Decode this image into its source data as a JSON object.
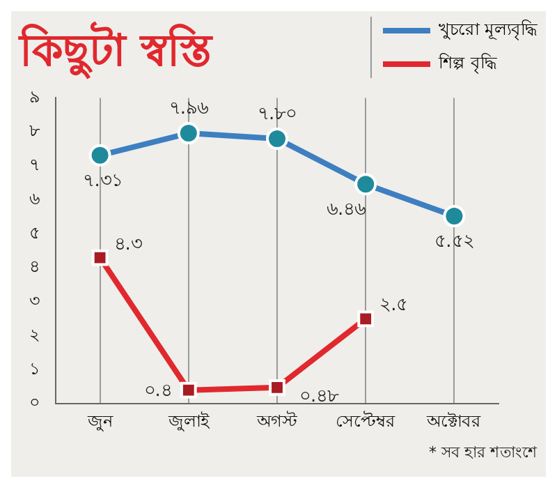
{
  "chart_data": {
    "type": "line",
    "title": "কিছুটা স্বস্তি",
    "categories": [
      "জুন",
      "জুলাই",
      "অগস্ট",
      "সেপ্টেম্বর",
      "অক্টোবর"
    ],
    "series": [
      {
        "name": "খুচরো মূল্যবৃদ্ধি",
        "color": "#3d7fc1",
        "marker": "circle",
        "values": [
          7.31,
          7.96,
          7.8,
          6.46,
          5.52
        ],
        "value_labels": [
          "৭.৩১",
          "৭.৯৬",
          "৭.৮০",
          "৬.৪৬",
          "৫.৫২"
        ]
      },
      {
        "name": "শিল্প বৃদ্ধি",
        "color": "#e0282e",
        "marker": "square",
        "values": [
          4.3,
          0.4,
          0.48,
          2.5,
          null
        ],
        "value_labels": [
          "৪.৩",
          "০.৪",
          "০.৪৮",
          "২.৫",
          null
        ]
      }
    ],
    "ylim": [
      0,
      9
    ],
    "yticks": [
      {
        "value": 0,
        "label": "০"
      },
      {
        "value": 1,
        "label": "১"
      },
      {
        "value": 2,
        "label": "২"
      },
      {
        "value": 3,
        "label": "৩"
      },
      {
        "value": 4,
        "label": "৪"
      },
      {
        "value": 5,
        "label": "৫"
      },
      {
        "value": 6,
        "label": "৬"
      },
      {
        "value": 7,
        "label": "৭"
      },
      {
        "value": 8,
        "label": "৮"
      },
      {
        "value": 9,
        "label": "৯"
      }
    ],
    "grid": "x",
    "legend": "top right",
    "line_style": "solid",
    "annotations": [
      "* সব হার শতাংশে"
    ]
  }
}
